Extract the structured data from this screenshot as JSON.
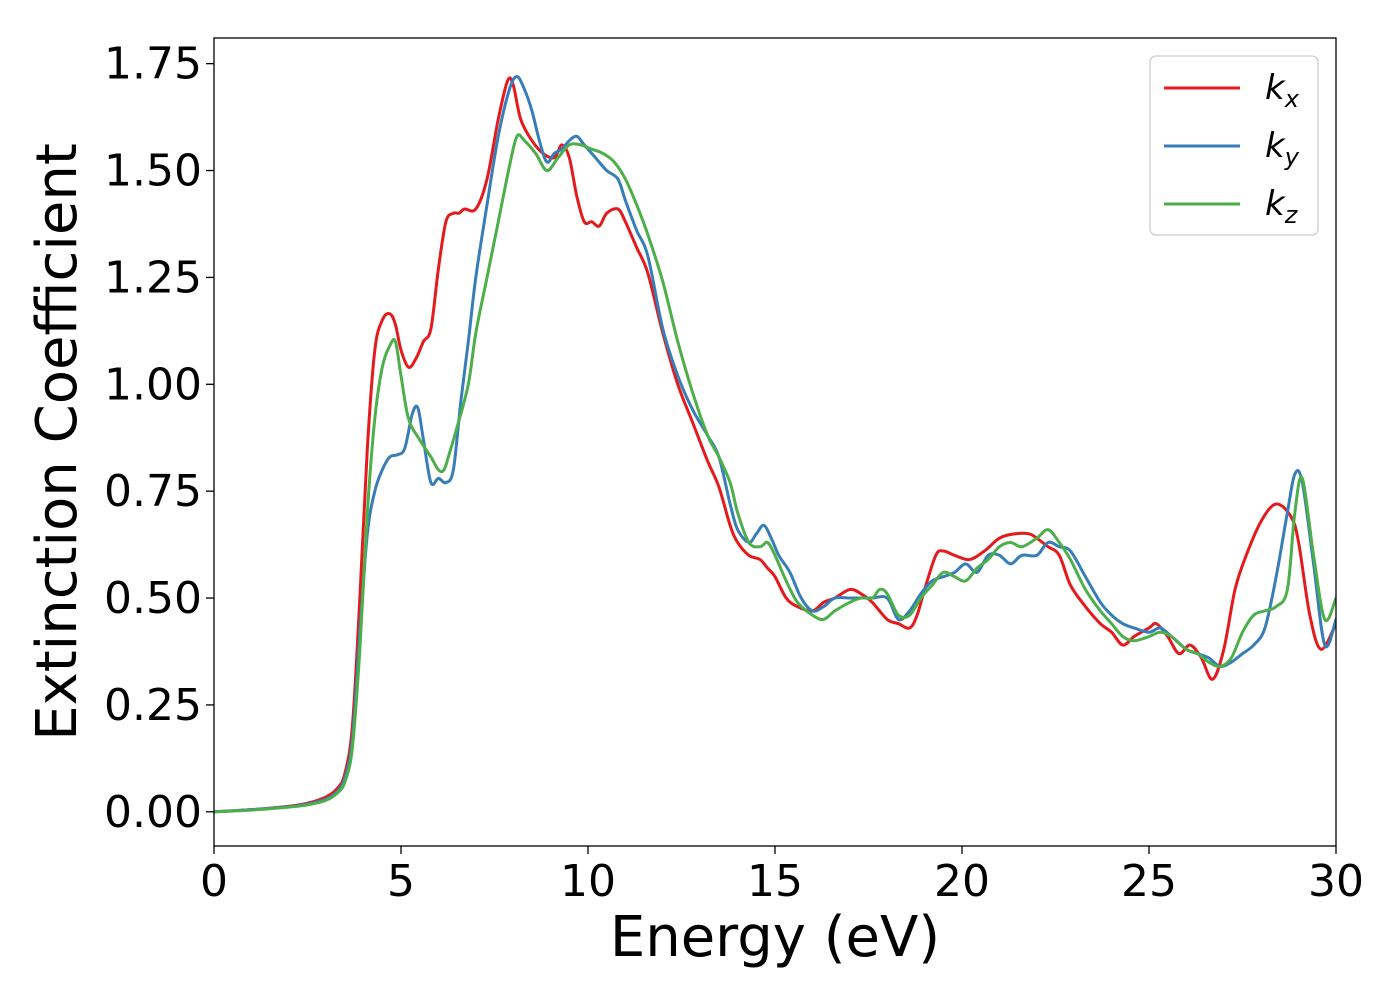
{
  "chart_data": {
    "type": "line",
    "xlabel": "Energy (eV)",
    "ylabel": "Extinction Coefficient",
    "xlim": [
      0,
      30
    ],
    "ylim": [
      -0.08,
      1.81
    ],
    "xticks": [
      0,
      5,
      10,
      15,
      20,
      25,
      30
    ],
    "xtick_labels": [
      "0",
      "5",
      "10",
      "15",
      "20",
      "25",
      "30"
    ],
    "yticks": [
      0.0,
      0.25,
      0.5,
      0.75,
      1.0,
      1.25,
      1.5,
      1.75
    ],
    "ytick_labels": [
      "0.00",
      "0.25",
      "0.50",
      "0.75",
      "1.00",
      "1.25",
      "1.50",
      "1.75"
    ],
    "grid": false,
    "legend_position": "top-right",
    "series": [
      {
        "name": "k",
        "name_sub": "x",
        "color": "#e41a1c",
        "x": [
          0,
          1,
          2,
          2.5,
          3,
          3.3,
          3.5,
          3.7,
          3.9,
          4.1,
          4.3,
          4.5,
          4.7,
          4.85,
          5.0,
          5.2,
          5.4,
          5.6,
          5.8,
          6.0,
          6.2,
          6.4,
          6.55,
          6.7,
          7.0,
          7.3,
          7.6,
          7.85,
          8.0,
          8.2,
          8.5,
          8.8,
          9.1,
          9.3,
          9.5,
          9.7,
          9.9,
          10.1,
          10.3,
          10.5,
          10.8,
          11.0,
          11.3,
          11.6,
          12.0,
          12.4,
          12.8,
          13.2,
          13.5,
          13.8,
          14.0,
          14.3,
          14.6,
          14.8,
          15.0,
          15.3,
          15.6,
          16.0,
          16.3,
          16.6,
          17.0,
          17.3,
          17.6,
          18.0,
          18.3,
          18.6,
          18.8,
          19.0,
          19.3,
          19.5,
          19.8,
          20.2,
          20.6,
          21.0,
          21.4,
          21.8,
          22.0,
          22.3,
          22.6,
          22.9,
          23.3,
          23.7,
          24.0,
          24.3,
          24.6,
          25.0,
          25.2,
          25.5,
          25.8,
          26.1,
          26.4,
          26.7,
          27.0,
          27.3,
          27.6,
          28.0,
          28.4,
          28.8,
          29.0,
          29.3,
          29.6,
          30.0
        ],
        "values": [
          0.0,
          0.005,
          0.013,
          0.02,
          0.035,
          0.055,
          0.09,
          0.2,
          0.5,
          0.85,
          1.08,
          1.15,
          1.165,
          1.14,
          1.08,
          1.04,
          1.06,
          1.1,
          1.13,
          1.27,
          1.38,
          1.4,
          1.4,
          1.41,
          1.41,
          1.48,
          1.62,
          1.71,
          1.7,
          1.62,
          1.57,
          1.54,
          1.53,
          1.56,
          1.53,
          1.44,
          1.38,
          1.38,
          1.37,
          1.4,
          1.41,
          1.38,
          1.32,
          1.26,
          1.12,
          1.0,
          0.91,
          0.82,
          0.76,
          0.67,
          0.63,
          0.6,
          0.59,
          0.57,
          0.55,
          0.5,
          0.48,
          0.47,
          0.49,
          0.5,
          0.52,
          0.51,
          0.49,
          0.45,
          0.44,
          0.43,
          0.46,
          0.52,
          0.6,
          0.61,
          0.6,
          0.59,
          0.61,
          0.64,
          0.65,
          0.65,
          0.64,
          0.62,
          0.6,
          0.53,
          0.48,
          0.44,
          0.42,
          0.39,
          0.41,
          0.43,
          0.44,
          0.41,
          0.37,
          0.39,
          0.36,
          0.31,
          0.38,
          0.52,
          0.6,
          0.68,
          0.72,
          0.69,
          0.63,
          0.46,
          0.38,
          0.44
        ]
      },
      {
        "name": "k",
        "name_sub": "y",
        "color": "#377eb8",
        "x": [
          0,
          1,
          2,
          2.5,
          3,
          3.3,
          3.5,
          3.7,
          3.9,
          4.1,
          4.3,
          4.5,
          4.7,
          4.9,
          5.1,
          5.3,
          5.45,
          5.6,
          5.8,
          6.0,
          6.2,
          6.4,
          6.6,
          6.8,
          7.0,
          7.3,
          7.6,
          7.9,
          8.1,
          8.3,
          8.5,
          8.7,
          8.9,
          9.1,
          9.3,
          9.5,
          9.7,
          9.9,
          10.2,
          10.5,
          10.8,
          11.0,
          11.3,
          11.6,
          12.0,
          12.4,
          12.8,
          13.2,
          13.5,
          13.8,
          14.0,
          14.3,
          14.5,
          14.7,
          14.9,
          15.1,
          15.4,
          15.7,
          16.0,
          16.3,
          16.6,
          17.0,
          17.3,
          17.6,
          18.0,
          18.3,
          18.6,
          18.9,
          19.2,
          19.5,
          19.8,
          20.1,
          20.4,
          20.7,
          21.0,
          21.3,
          21.6,
          22.0,
          22.3,
          22.6,
          22.9,
          23.3,
          23.7,
          24.0,
          24.3,
          24.6,
          25.0,
          25.3,
          25.6,
          26.0,
          26.3,
          26.6,
          26.9,
          27.2,
          27.5,
          27.8,
          28.1,
          28.4,
          28.7,
          28.9,
          29.1,
          29.4,
          29.7,
          30.0
        ],
        "values": [
          0.0,
          0.005,
          0.012,
          0.018,
          0.03,
          0.048,
          0.08,
          0.17,
          0.42,
          0.65,
          0.75,
          0.8,
          0.83,
          0.835,
          0.85,
          0.93,
          0.945,
          0.87,
          0.77,
          0.78,
          0.77,
          0.8,
          0.96,
          1.1,
          1.25,
          1.42,
          1.58,
          1.69,
          1.72,
          1.69,
          1.64,
          1.57,
          1.52,
          1.54,
          1.55,
          1.57,
          1.58,
          1.56,
          1.53,
          1.5,
          1.48,
          1.43,
          1.36,
          1.3,
          1.13,
          1.02,
          0.94,
          0.88,
          0.83,
          0.72,
          0.66,
          0.63,
          0.65,
          0.67,
          0.64,
          0.6,
          0.56,
          0.5,
          0.47,
          0.48,
          0.5,
          0.5,
          0.5,
          0.5,
          0.5,
          0.45,
          0.47,
          0.51,
          0.54,
          0.55,
          0.56,
          0.58,
          0.56,
          0.6,
          0.6,
          0.58,
          0.6,
          0.6,
          0.63,
          0.62,
          0.61,
          0.55,
          0.49,
          0.46,
          0.44,
          0.43,
          0.42,
          0.43,
          0.41,
          0.38,
          0.37,
          0.36,
          0.34,
          0.35,
          0.37,
          0.39,
          0.43,
          0.55,
          0.7,
          0.79,
          0.77,
          0.58,
          0.39,
          0.45
        ]
      },
      {
        "name": "k",
        "name_sub": "z",
        "color": "#4daf4a",
        "x": [
          0,
          1,
          2,
          2.5,
          3,
          3.3,
          3.5,
          3.7,
          3.9,
          4.1,
          4.3,
          4.5,
          4.7,
          4.85,
          5.0,
          5.2,
          5.5,
          5.8,
          6.0,
          6.15,
          6.3,
          6.5,
          6.8,
          7.0,
          7.3,
          7.6,
          7.9,
          8.1,
          8.3,
          8.6,
          8.9,
          9.2,
          9.5,
          9.8,
          10.1,
          10.4,
          10.7,
          11.0,
          11.3,
          11.6,
          12.0,
          12.4,
          12.8,
          13.2,
          13.5,
          13.8,
          14.0,
          14.3,
          14.6,
          14.8,
          15.0,
          15.3,
          15.6,
          16.0,
          16.3,
          16.6,
          17.0,
          17.3,
          17.6,
          17.8,
          18.0,
          18.3,
          18.6,
          18.9,
          19.2,
          19.5,
          19.8,
          20.1,
          20.4,
          20.7,
          21.0,
          21.3,
          21.6,
          22.0,
          22.3,
          22.6,
          22.9,
          23.3,
          23.7,
          24.0,
          24.3,
          24.6,
          25.0,
          25.3,
          25.6,
          26.0,
          26.3,
          26.6,
          26.9,
          27.2,
          27.5,
          27.8,
          28.1,
          28.4,
          28.7,
          28.9,
          29.1,
          29.4,
          29.7,
          30.0
        ],
        "values": [
          0.0,
          0.004,
          0.011,
          0.016,
          0.027,
          0.044,
          0.07,
          0.15,
          0.38,
          0.7,
          0.92,
          1.04,
          1.09,
          1.1,
          1.02,
          0.92,
          0.87,
          0.83,
          0.8,
          0.8,
          0.84,
          0.9,
          1.0,
          1.12,
          1.25,
          1.38,
          1.51,
          1.58,
          1.57,
          1.54,
          1.5,
          1.53,
          1.56,
          1.56,
          1.55,
          1.54,
          1.52,
          1.48,
          1.42,
          1.35,
          1.24,
          1.1,
          0.98,
          0.88,
          0.83,
          0.77,
          0.7,
          0.63,
          0.62,
          0.63,
          0.6,
          0.54,
          0.49,
          0.46,
          0.45,
          0.47,
          0.49,
          0.5,
          0.5,
          0.52,
          0.51,
          0.46,
          0.46,
          0.5,
          0.53,
          0.56,
          0.55,
          0.54,
          0.57,
          0.59,
          0.62,
          0.63,
          0.62,
          0.64,
          0.66,
          0.63,
          0.59,
          0.52,
          0.47,
          0.44,
          0.41,
          0.4,
          0.41,
          0.42,
          0.41,
          0.38,
          0.37,
          0.35,
          0.34,
          0.36,
          0.42,
          0.46,
          0.47,
          0.48,
          0.52,
          0.7,
          0.78,
          0.6,
          0.45,
          0.5
        ]
      }
    ]
  }
}
